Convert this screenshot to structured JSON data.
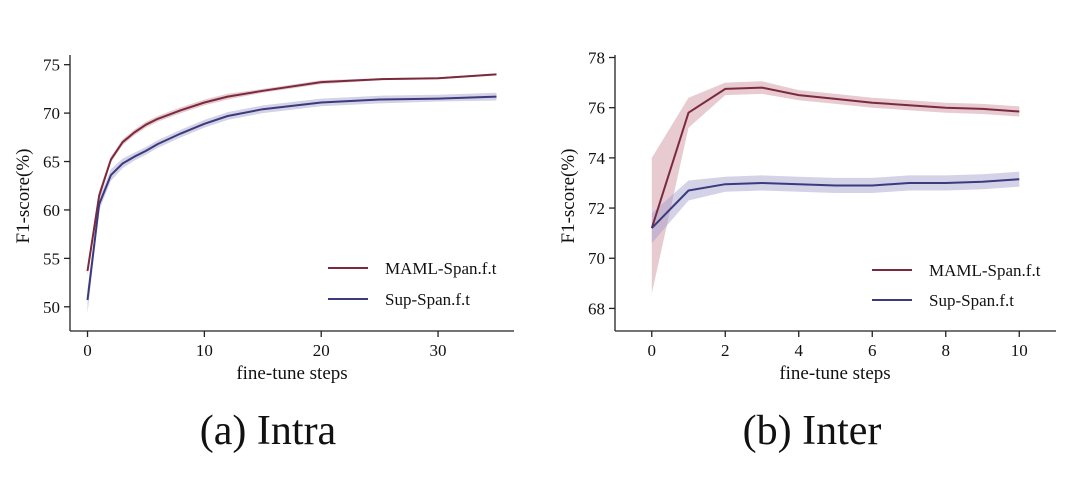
{
  "chart_data": [
    {
      "type": "line",
      "caption": "(a) Intra",
      "xlabel": "fine-tune steps",
      "ylabel": "F1-score(%)",
      "xlim": [
        -1.5,
        36.5
      ],
      "ylim": [
        47.5,
        76
      ],
      "xticks": [
        0,
        10,
        20,
        30
      ],
      "yticks": [
        50,
        55,
        60,
        65,
        70,
        75
      ],
      "legend_position": "bottom-right",
      "series": [
        {
          "name": "MAML-Span.f.t",
          "color": "#7b2a3e",
          "band_color": "#c98b99",
          "x": [
            0,
            1,
            2,
            3,
            4,
            5,
            6,
            8,
            10,
            12,
            15,
            20,
            25,
            30,
            35
          ],
          "y": [
            53.7,
            61.5,
            65.2,
            67.0,
            68.0,
            68.8,
            69.4,
            70.3,
            71.1,
            71.7,
            72.3,
            73.2,
            73.5,
            73.6,
            74.0
          ],
          "lower": [
            53.2,
            61.0,
            64.9,
            66.7,
            67.7,
            68.5,
            69.1,
            70.0,
            70.8,
            71.4,
            72.1,
            73.0,
            73.4,
            73.5,
            73.9
          ],
          "upper": [
            54.2,
            62.0,
            65.5,
            67.3,
            68.3,
            69.1,
            69.7,
            70.6,
            71.4,
            72.0,
            72.5,
            73.4,
            73.6,
            73.7,
            74.1
          ]
        },
        {
          "name": "Sup-Span.f.t",
          "color": "#3b3a7d",
          "band_color": "#9d9cc9",
          "x": [
            0,
            1,
            2,
            3,
            4,
            5,
            6,
            8,
            10,
            12,
            15,
            20,
            25,
            30,
            35
          ],
          "y": [
            50.7,
            60.6,
            63.6,
            64.8,
            65.5,
            66.1,
            66.8,
            67.9,
            68.9,
            69.7,
            70.4,
            71.1,
            71.4,
            71.5,
            71.7
          ],
          "lower": [
            49.3,
            60.0,
            63.0,
            64.3,
            65.1,
            65.7,
            66.4,
            67.5,
            68.5,
            69.3,
            70.0,
            70.7,
            71.0,
            71.2,
            71.3
          ],
          "upper": [
            51.8,
            61.2,
            64.2,
            65.3,
            65.9,
            66.5,
            67.2,
            68.3,
            69.3,
            70.1,
            70.8,
            71.5,
            71.8,
            71.9,
            72.1
          ]
        }
      ]
    },
    {
      "type": "line",
      "caption": "(b) Inter",
      "xlabel": "fine-tune steps",
      "ylabel": "F1-score(%)",
      "xlim": [
        -1,
        11
      ],
      "ylim": [
        67.1,
        78.1
      ],
      "xticks": [
        0,
        2,
        4,
        6,
        8,
        10
      ],
      "yticks": [
        68,
        70,
        72,
        74,
        76,
        78
      ],
      "legend_position": "bottom-right",
      "series": [
        {
          "name": "MAML-Span.f.t",
          "color": "#7b2a3e",
          "band_color": "#c98b99",
          "x": [
            0,
            1,
            2,
            3,
            4,
            5,
            6,
            7,
            8,
            9,
            10
          ],
          "y": [
            71.2,
            75.8,
            76.75,
            76.8,
            76.5,
            76.35,
            76.2,
            76.1,
            76.0,
            75.95,
            75.85
          ],
          "lower": [
            68.6,
            75.2,
            76.5,
            76.55,
            76.3,
            76.15,
            76.0,
            75.9,
            75.8,
            75.75,
            75.65
          ],
          "upper": [
            74.0,
            76.4,
            77.0,
            77.05,
            76.7,
            76.55,
            76.4,
            76.3,
            76.2,
            76.15,
            76.05
          ]
        },
        {
          "name": "Sup-Span.f.t",
          "color": "#3b3a7d",
          "band_color": "#9d9cc9",
          "x": [
            0,
            1,
            2,
            3,
            4,
            5,
            6,
            7,
            8,
            9,
            10
          ],
          "y": [
            71.2,
            72.7,
            72.95,
            73.0,
            72.95,
            72.9,
            72.9,
            73.0,
            73.0,
            73.05,
            73.15
          ],
          "lower": [
            70.6,
            72.3,
            72.65,
            72.7,
            72.65,
            72.6,
            72.6,
            72.7,
            72.7,
            72.75,
            72.85
          ],
          "upper": [
            71.8,
            73.1,
            73.25,
            73.3,
            73.25,
            73.2,
            73.2,
            73.3,
            73.3,
            73.35,
            73.45
          ]
        }
      ]
    }
  ]
}
